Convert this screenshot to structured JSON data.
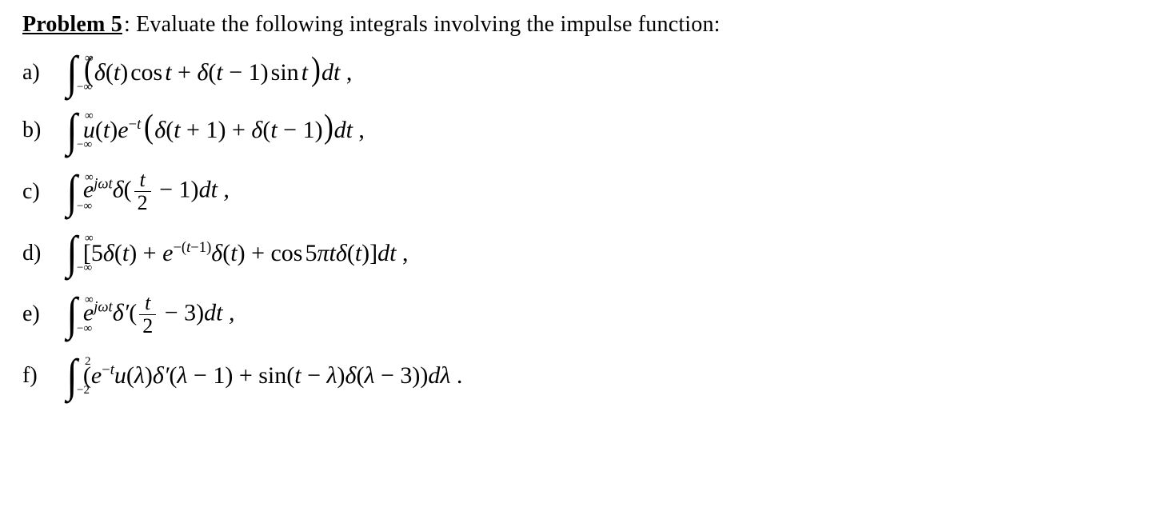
{
  "text_color": "#000000",
  "background_color": "#ffffff",
  "font_family": "Times New Roman",
  "base_fontsize_pt": 21,
  "heading": {
    "label": "Problem 5",
    "after": ": Evaluate the following integrals involving the impulse function:"
  },
  "symbols": {
    "integral": "∫",
    "infinity": "∞",
    "neg_infinity": "−∞",
    "delta": "δ",
    "pi": "π",
    "lambda": "λ",
    "omega": "ω",
    "prime": "′"
  },
  "items": [
    {
      "letter": "a)",
      "integral": {
        "lower": "−∞",
        "upper": "∞"
      },
      "body_plain": "(δ(t) cos t + δ(t − 1) sin t) dt ,"
    },
    {
      "letter": "b)",
      "integral": {
        "lower": "−∞",
        "upper": "∞"
      },
      "body_plain": "u(t) e^{−t} ( δ(t + 1) + δ(t − 1) ) dt ,"
    },
    {
      "letter": "c)",
      "integral": {
        "lower": "−∞",
        "upper": "∞"
      },
      "body_plain": "e^{jωt} δ( t/2 − 1 ) dt ,",
      "fraction": {
        "num": "t",
        "den": "2"
      },
      "after_frac": " − 1)",
      "before_frac_exp": "jωt",
      "trailer": "dt ,"
    },
    {
      "letter": "d)",
      "integral": {
        "lower": "−∞",
        "upper": "∞"
      },
      "body_plain": "[5δ(t) + e^{−(t−1)} δ(t) + cos 5πt δ(t)] dt ,"
    },
    {
      "letter": "e)",
      "integral": {
        "lower": "−∞",
        "upper": "∞"
      },
      "body_plain": "e^{jωt} δ′( t/2 − 3 ) dt ,",
      "fraction": {
        "num": "t",
        "den": "2"
      },
      "before_frac_exp": "jωt",
      "after_frac": " − 3)",
      "trailer": "dt ,"
    },
    {
      "letter": "f)",
      "integral": {
        "lower": "−2",
        "upper": "2"
      },
      "body_plain": "( e^{−t} u(λ) δ′(λ − 1) + sin(t − λ) δ(λ − 3) ) dλ ."
    }
  ]
}
